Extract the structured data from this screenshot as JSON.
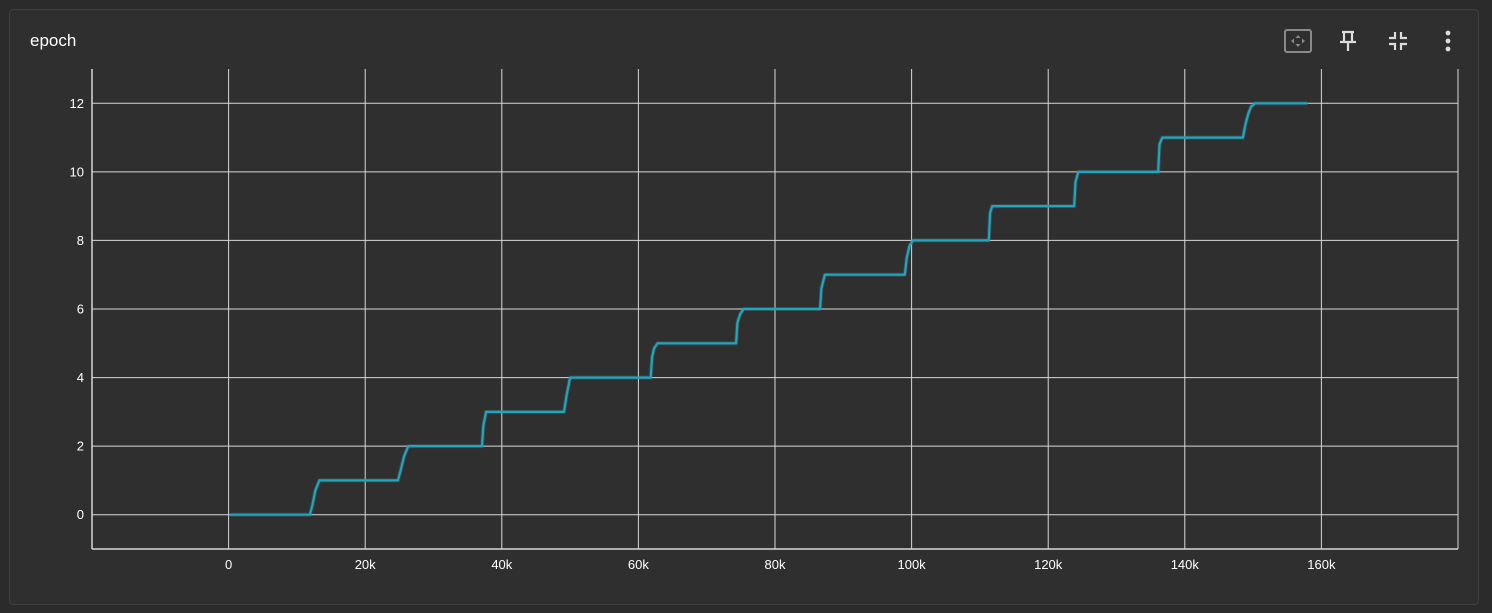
{
  "card": {
    "title": "epoch"
  },
  "toolbar": [
    {
      "name": "fit-domain-icon",
      "label": "Fit domain to data"
    },
    {
      "name": "pin-icon",
      "label": "Pin card"
    },
    {
      "name": "collapse-icon",
      "label": "Collapse card"
    },
    {
      "name": "more-vert-icon",
      "label": "More options"
    }
  ],
  "colors": {
    "series": "#1ca7c1",
    "grid": "#d8d8d8",
    "ticks": "#ffffff",
    "background": "#2f2f2f"
  },
  "chart_data": {
    "type": "line",
    "title": "epoch",
    "xlabel": "",
    "ylabel": "",
    "xlim": [
      -20000,
      180000
    ],
    "ylim": [
      -1,
      13
    ],
    "xticks": [
      0,
      20000,
      40000,
      60000,
      80000,
      100000,
      120000,
      140000,
      160000
    ],
    "xtick_labels": [
      "0",
      "20k",
      "40k",
      "60k",
      "80k",
      "100k",
      "120k",
      "140k",
      "160k"
    ],
    "yticks": [
      0,
      2,
      4,
      6,
      8,
      10,
      12
    ],
    "ytick_labels": [
      "0",
      "2",
      "4",
      "6",
      "8",
      "10",
      "12"
    ],
    "grid": true,
    "legend": "none",
    "series": [
      {
        "x": [
          300,
          11900,
          12300,
          12700,
          13300,
          24800,
          25200,
          25700,
          26300,
          37100,
          37300,
          37700,
          49100,
          49500,
          50000,
          61800,
          62000,
          62300,
          62800,
          74300,
          74500,
          74900,
          75400,
          86600,
          86800,
          87300,
          99000,
          99300,
          99700,
          100200,
          111300,
          111500,
          111800,
          123800,
          124000,
          124400,
          136100,
          136300,
          136700,
          148500,
          148900,
          149300,
          149700,
          150300,
          157900
        ],
        "y": [
          0,
          0,
          0.3,
          0.7,
          1,
          1,
          1.3,
          1.7,
          2,
          2,
          2.6,
          3,
          3,
          3.5,
          4,
          4,
          4.6,
          4.85,
          5,
          5,
          5.6,
          5.85,
          6,
          6,
          6.6,
          7,
          7,
          7.5,
          7.85,
          8,
          8,
          8.8,
          9,
          9,
          9.7,
          10,
          10,
          10.8,
          11,
          11,
          11.4,
          11.7,
          11.9,
          12,
          12
        ]
      }
    ]
  }
}
